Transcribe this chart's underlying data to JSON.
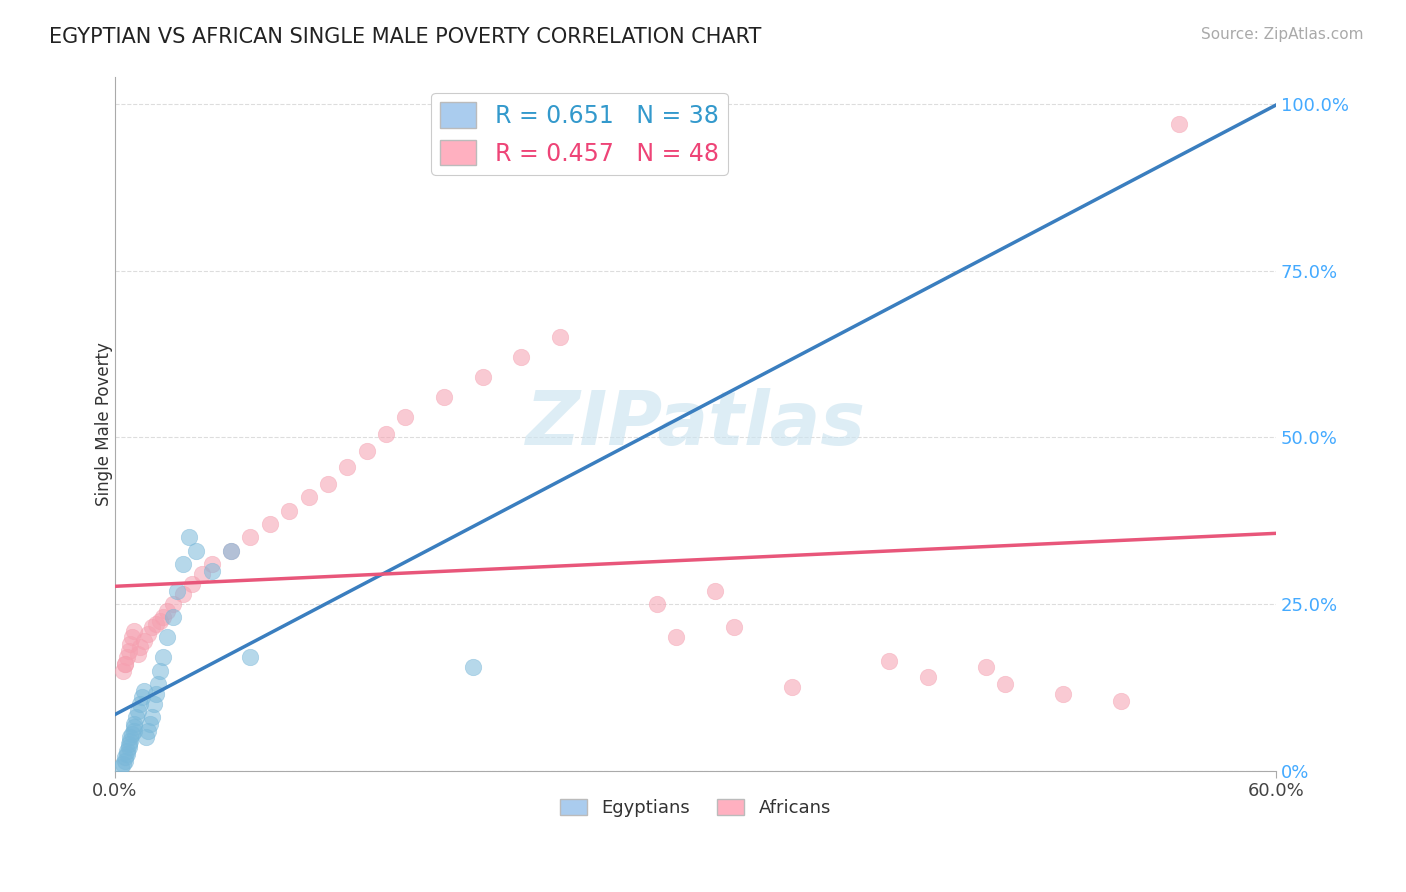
{
  "title": "EGYPTIAN VS AFRICAN SINGLE MALE POVERTY CORRELATION CHART",
  "source": "Source: ZipAtlas.com",
  "ylabel": "Single Male Poverty",
  "xlim_min": 0.0,
  "xlim_max": 0.6,
  "ylim_min": 0.0,
  "ylim_max": 1.04,
  "xtick_positions": [
    0.0,
    0.6
  ],
  "xtick_labels": [
    "0.0%",
    "60.0%"
  ],
  "ytick_positions": [
    0.0,
    0.25,
    0.5,
    0.75,
    1.0
  ],
  "ytick_labels": [
    "0%",
    "25.0%",
    "50.0%",
    "75.0%",
    "100.0%"
  ],
  "blue_scatter_color": "#7ab8d9",
  "pink_scatter_color": "#f5a0b0",
  "blue_line_color": "#3a7ebf",
  "pink_line_color": "#e8567a",
  "grid_color": "#dddddd",
  "bg_color": "#ffffff",
  "title_color": "#222222",
  "source_color": "#aaaaaa",
  "ytick_color": "#44aaff",
  "xtick_color": "#444444",
  "ylabel_color": "#333333",
  "R_blue": "0.651",
  "N_blue": "38",
  "R_pink": "0.457",
  "N_pink": "48",
  "legend_blue_color": "#3399cc",
  "legend_pink_color": "#ee4477",
  "watermark_color": "#cce4f0",
  "legend_label_blue": "R = 0.651   N = 38",
  "legend_label_pink": "R = 0.457   N = 48",
  "eg_x": [
    0.003,
    0.004,
    0.005,
    0.005,
    0.006,
    0.006,
    0.007,
    0.007,
    0.008,
    0.008,
    0.009,
    0.01,
    0.01,
    0.01,
    0.011,
    0.012,
    0.013,
    0.014,
    0.015,
    0.016,
    0.017,
    0.018,
    0.019,
    0.02,
    0.021,
    0.022,
    0.023,
    0.025,
    0.027,
    0.03,
    0.032,
    0.035,
    0.038,
    0.042,
    0.05,
    0.06,
    0.07,
    0.185
  ],
  "eg_y": [
    0.005,
    0.01,
    0.015,
    0.02,
    0.025,
    0.03,
    0.035,
    0.04,
    0.045,
    0.05,
    0.055,
    0.06,
    0.065,
    0.07,
    0.08,
    0.09,
    0.1,
    0.11,
    0.12,
    0.05,
    0.06,
    0.07,
    0.08,
    0.1,
    0.115,
    0.13,
    0.15,
    0.17,
    0.2,
    0.23,
    0.27,
    0.31,
    0.35,
    0.33,
    0.3,
    0.33,
    0.17,
    0.155
  ],
  "af_x": [
    0.004,
    0.005,
    0.006,
    0.007,
    0.008,
    0.009,
    0.01,
    0.012,
    0.013,
    0.015,
    0.017,
    0.019,
    0.021,
    0.023,
    0.025,
    0.027,
    0.03,
    0.035,
    0.04,
    0.045,
    0.05,
    0.06,
    0.07,
    0.08,
    0.09,
    0.1,
    0.11,
    0.12,
    0.13,
    0.14,
    0.15,
    0.17,
    0.19,
    0.21,
    0.23,
    0.29,
    0.32,
    0.35,
    0.4,
    0.42,
    0.45,
    0.46,
    0.49,
    0.52,
    0.31,
    0.55,
    0.005,
    0.28
  ],
  "af_y": [
    0.15,
    0.16,
    0.17,
    0.18,
    0.19,
    0.2,
    0.21,
    0.175,
    0.185,
    0.195,
    0.205,
    0.215,
    0.22,
    0.225,
    0.23,
    0.24,
    0.25,
    0.265,
    0.28,
    0.295,
    0.31,
    0.33,
    0.35,
    0.37,
    0.39,
    0.41,
    0.43,
    0.455,
    0.48,
    0.505,
    0.53,
    0.56,
    0.59,
    0.62,
    0.65,
    0.2,
    0.215,
    0.125,
    0.165,
    0.14,
    0.155,
    0.13,
    0.115,
    0.105,
    0.27,
    0.97,
    0.16,
    0.25
  ]
}
